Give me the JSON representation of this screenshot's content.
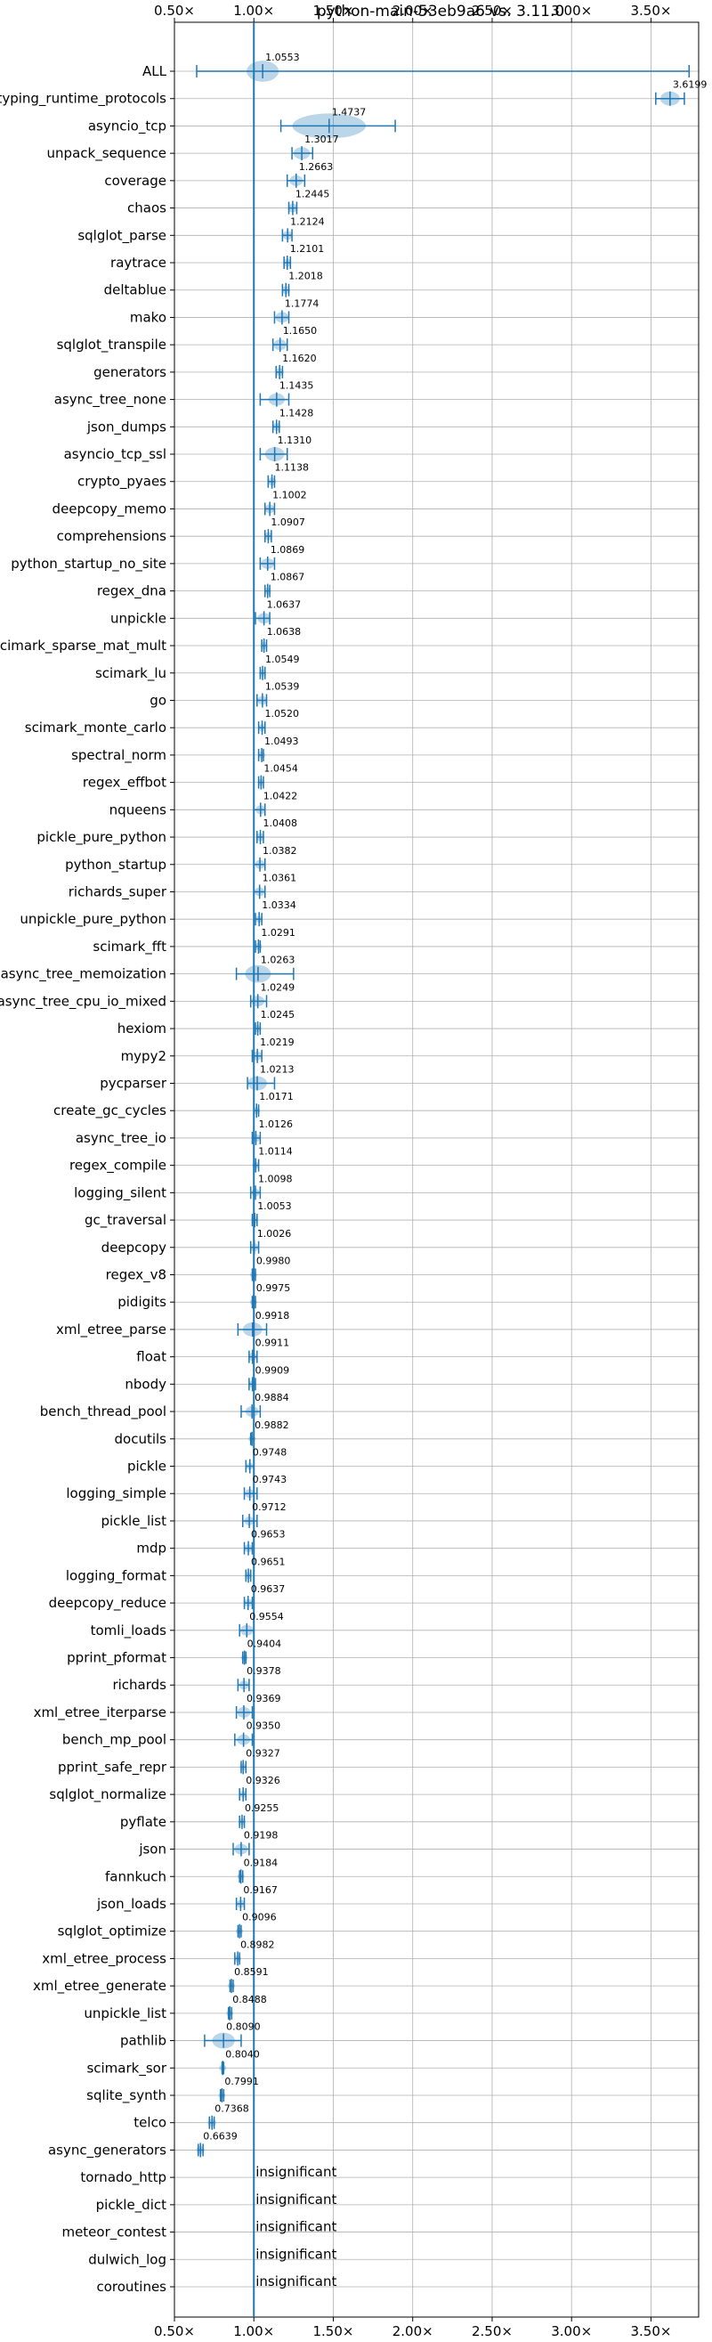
{
  "chart_data": {
    "type": "violin",
    "title": "python-main-53eb9a6 vs. 3.11.0",
    "xlim": [
      0.5,
      3.8
    ],
    "xticks": [
      0.5,
      1.0,
      1.5,
      2.0,
      2.5,
      3.0,
      3.5
    ],
    "xtick_labels": [
      "0.50×",
      "1.00×",
      "1.50×",
      "2.00×",
      "2.50×",
      "3.00×",
      "3.50×"
    ],
    "reference_line": 1.0,
    "grid": true,
    "insignificant_text": "insignificant",
    "categories": [
      "ALL",
      "typing_runtime_protocols",
      "asyncio_tcp",
      "unpack_sequence",
      "coverage",
      "chaos",
      "sqlglot_parse",
      "raytrace",
      "deltablue",
      "mako",
      "sqlglot_transpile",
      "generators",
      "async_tree_none",
      "json_dumps",
      "asyncio_tcp_ssl",
      "crypto_pyaes",
      "deepcopy_memo",
      "comprehensions",
      "python_startup_no_site",
      "regex_dna",
      "unpickle",
      "scimark_sparse_mat_mult",
      "scimark_lu",
      "go",
      "scimark_monte_carlo",
      "spectral_norm",
      "regex_effbot",
      "nqueens",
      "pickle_pure_python",
      "python_startup",
      "richards_super",
      "unpickle_pure_python",
      "scimark_fft",
      "async_tree_memoization",
      "async_tree_cpu_io_mixed",
      "hexiom",
      "mypy2",
      "pycparser",
      "create_gc_cycles",
      "async_tree_io",
      "regex_compile",
      "logging_silent",
      "gc_traversal",
      "deepcopy",
      "regex_v8",
      "pidigits",
      "xml_etree_parse",
      "float",
      "nbody",
      "bench_thread_pool",
      "docutils",
      "pickle",
      "logging_simple",
      "pickle_list",
      "mdp",
      "logging_format",
      "deepcopy_reduce",
      "tomli_loads",
      "pprint_pformat",
      "richards",
      "xml_etree_iterparse",
      "bench_mp_pool",
      "pprint_safe_repr",
      "sqlglot_normalize",
      "pyflate",
      "json",
      "fannkuch",
      "json_loads",
      "sqlglot_optimize",
      "xml_etree_process",
      "xml_etree_generate",
      "unpickle_list",
      "pathlib",
      "scimark_sor",
      "sqlite_synth",
      "telco",
      "async_generators",
      "tornado_http",
      "pickle_dict",
      "meteor_contest",
      "dulwich_log",
      "coroutines"
    ],
    "values": [
      1.0553,
      3.6199,
      1.4737,
      1.3017,
      1.2663,
      1.2445,
      1.2124,
      1.2101,
      1.2018,
      1.1774,
      1.165,
      1.162,
      1.1435,
      1.1428,
      1.131,
      1.1138,
      1.1002,
      1.0907,
      1.0869,
      1.0867,
      1.0637,
      1.0638,
      1.0549,
      1.0539,
      1.052,
      1.0493,
      1.0454,
      1.0422,
      1.0408,
      1.0382,
      1.0361,
      1.0334,
      1.0291,
      1.0263,
      1.0249,
      1.0245,
      1.0219,
      1.0213,
      1.0171,
      1.0126,
      1.0114,
      1.0098,
      1.0053,
      1.0026,
      0.998,
      0.9975,
      0.9918,
      0.9911,
      0.9909,
      0.9884,
      0.9882,
      0.9748,
      0.9743,
      0.9712,
      0.9653,
      0.9651,
      0.9637,
      0.9554,
      0.9404,
      0.9378,
      0.9369,
      0.935,
      0.9327,
      0.9326,
      0.9255,
      0.9198,
      0.9184,
      0.9167,
      0.9096,
      0.8982,
      0.8591,
      0.8488,
      0.809,
      0.804,
      0.7991,
      0.7368,
      0.6639,
      null,
      null,
      null,
      null,
      null
    ],
    "value_labels": [
      "1.0553",
      "3.6199",
      "1.4737",
      "1.3017",
      "1.2663",
      "1.2445",
      "1.2124",
      "1.2101",
      "1.2018",
      "1.1774",
      "1.1650",
      "1.1620",
      "1.1435",
      "1.1428",
      "1.1310",
      "1.1138",
      "1.1002",
      "1.0907",
      "1.0869",
      "1.0867",
      "1.0637",
      "1.0638",
      "1.0549",
      "1.0539",
      "1.0520",
      "1.0493",
      "1.0454",
      "1.0422",
      "1.0408",
      "1.0382",
      "1.0361",
      "1.0334",
      "1.0291",
      "1.0263",
      "1.0249",
      "1.0245",
      "1.0219",
      "1.0213",
      "1.0171",
      "1.0126",
      "1.0114",
      "1.0098",
      "1.0053",
      "1.0026",
      "0.9980",
      "0.9975",
      "0.9918",
      "0.9911",
      "0.9909",
      "0.9884",
      "0.9882",
      "0.9748",
      "0.9743",
      "0.9712",
      "0.9653",
      "0.9651",
      "0.9637",
      "0.9554",
      "0.9404",
      "0.9378",
      "0.9369",
      "0.9350",
      "0.9327",
      "0.9326",
      "0.9255",
      "0.9198",
      "0.9184",
      "0.9167",
      "0.9096",
      "0.8982",
      "0.8591",
      "0.8488",
      "0.8090",
      "0.8040",
      "0.7991",
      "0.7368",
      "0.6639",
      null,
      null,
      null,
      null,
      null
    ],
    "ranges": [
      [
        0.64,
        3.74
      ],
      [
        3.53,
        3.71
      ],
      [
        1.17,
        1.89
      ],
      [
        1.24,
        1.37
      ],
      [
        1.21,
        1.32
      ],
      [
        1.22,
        1.27
      ],
      [
        1.18,
        1.24
      ],
      [
        1.19,
        1.23
      ],
      [
        1.18,
        1.22
      ],
      [
        1.13,
        1.22
      ],
      [
        1.12,
        1.21
      ],
      [
        1.14,
        1.18
      ],
      [
        1.04,
        1.22
      ],
      [
        1.12,
        1.16
      ],
      [
        1.04,
        1.21
      ],
      [
        1.09,
        1.13
      ],
      [
        1.07,
        1.13
      ],
      [
        1.07,
        1.11
      ],
      [
        1.04,
        1.13
      ],
      [
        1.07,
        1.1
      ],
      [
        1.01,
        1.1
      ],
      [
        1.05,
        1.08
      ],
      [
        1.04,
        1.07
      ],
      [
        1.02,
        1.08
      ],
      [
        1.03,
        1.07
      ],
      [
        1.03,
        1.06
      ],
      [
        1.03,
        1.06
      ],
      [
        1.0,
        1.07
      ],
      [
        1.02,
        1.06
      ],
      [
        1.0,
        1.07
      ],
      [
        1.0,
        1.07
      ],
      [
        1.01,
        1.05
      ],
      [
        1.01,
        1.04
      ],
      [
        0.89,
        1.25
      ],
      [
        0.98,
        1.08
      ],
      [
        1.01,
        1.04
      ],
      [
        0.99,
        1.05
      ],
      [
        0.96,
        1.13
      ],
      [
        1.0,
        1.03
      ],
      [
        0.99,
        1.04
      ],
      [
        1.0,
        1.03
      ],
      [
        0.98,
        1.04
      ],
      [
        0.99,
        1.02
      ],
      [
        0.98,
        1.03
      ],
      [
        0.99,
        1.01
      ],
      [
        0.99,
        1.01
      ],
      [
        0.9,
        1.08
      ],
      [
        0.97,
        1.02
      ],
      [
        0.97,
        1.01
      ],
      [
        0.92,
        1.04
      ],
      [
        0.98,
        1.0
      ],
      [
        0.95,
        1.0
      ],
      [
        0.94,
        1.02
      ],
      [
        0.93,
        1.02
      ],
      [
        0.94,
        0.99
      ],
      [
        0.95,
        0.98
      ],
      [
        0.94,
        0.99
      ],
      [
        0.91,
        1.0
      ],
      [
        0.93,
        0.95
      ],
      [
        0.9,
        0.97
      ],
      [
        0.89,
        0.99
      ],
      [
        0.88,
        0.99
      ],
      [
        0.92,
        0.95
      ],
      [
        0.91,
        0.95
      ],
      [
        0.91,
        0.94
      ],
      [
        0.87,
        0.97
      ],
      [
        0.91,
        0.93
      ],
      [
        0.89,
        0.94
      ],
      [
        0.9,
        0.92
      ],
      [
        0.88,
        0.91
      ],
      [
        0.85,
        0.87
      ],
      [
        0.84,
        0.86
      ],
      [
        0.69,
        0.92
      ],
      [
        0.8,
        0.81
      ],
      [
        0.79,
        0.81
      ],
      [
        0.72,
        0.75
      ],
      [
        0.65,
        0.68
      ],
      null,
      null,
      null,
      null,
      null
    ],
    "spread": [
      0.09,
      0.05,
      0.22,
      0.04,
      0.03,
      0.02,
      0.02,
      0.015,
      0.015,
      0.03,
      0.03,
      0.015,
      0.04,
      0.015,
      0.05,
      0.015,
      0.02,
      0.015,
      0.03,
      0.01,
      0.03,
      0.01,
      0.01,
      0.02,
      0.01,
      0.01,
      0.01,
      0.02,
      0.015,
      0.02,
      0.02,
      0.01,
      0.01,
      0.07,
      0.03,
      0.01,
      0.02,
      0.05,
      0.01,
      0.015,
      0.01,
      0.015,
      0.01,
      0.015,
      0.005,
      0.005,
      0.05,
      0.015,
      0.01,
      0.03,
      0.005,
      0.01,
      0.02,
      0.02,
      0.015,
      0.01,
      0.015,
      0.03,
      0.005,
      0.02,
      0.03,
      0.03,
      0.01,
      0.01,
      0.01,
      0.03,
      0.005,
      0.015,
      0.005,
      0.01,
      0.005,
      0.005,
      0.06,
      0.005,
      0.005,
      0.015,
      0.015,
      null,
      null,
      null,
      null,
      null
    ]
  }
}
